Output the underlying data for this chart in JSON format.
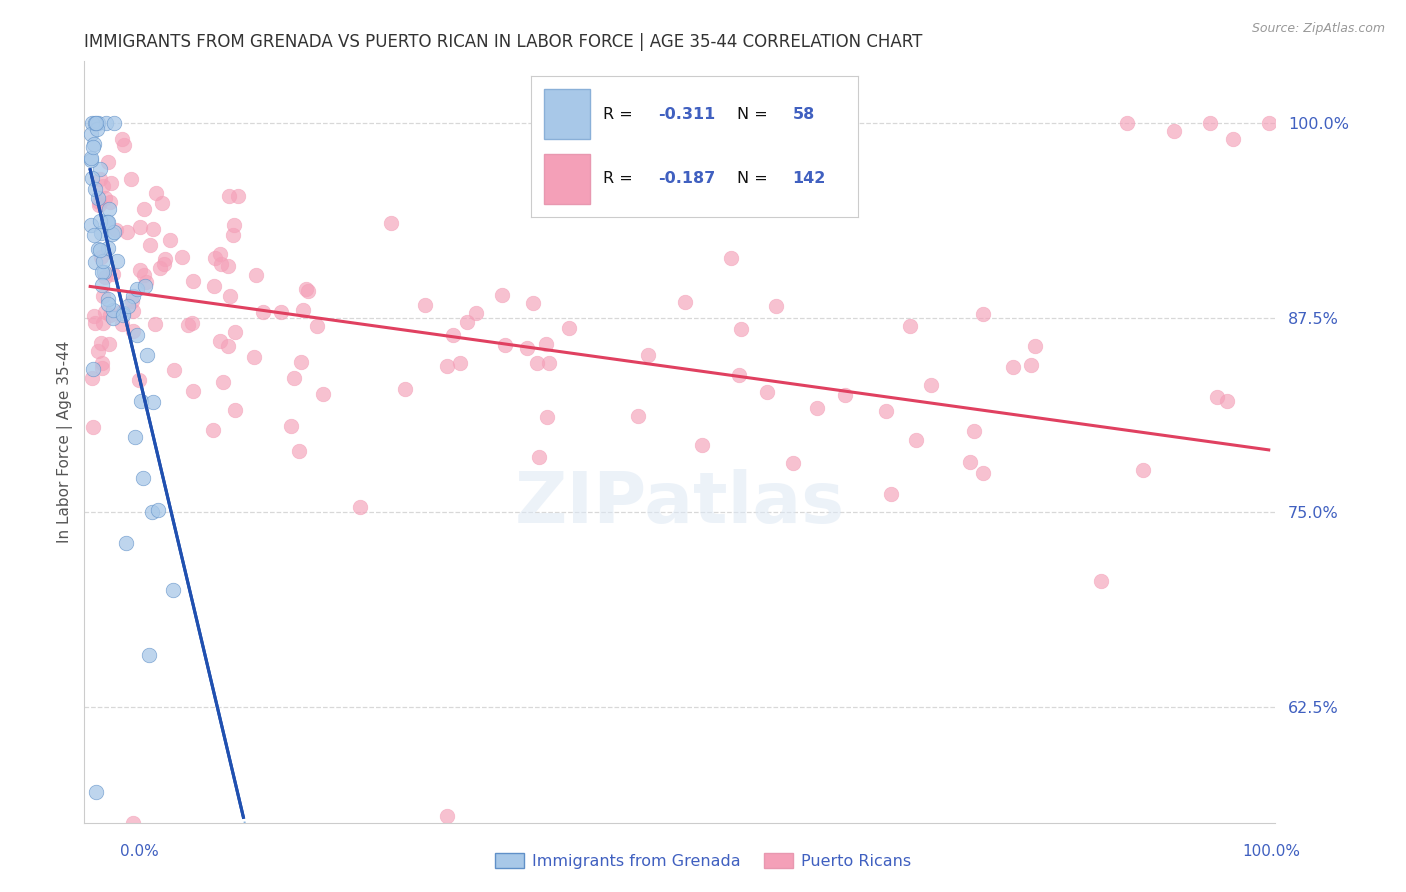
{
  "title": "IMMIGRANTS FROM GRENADA VS PUERTO RICAN IN LABOR FORCE | AGE 35-44 CORRELATION CHART",
  "source": "Source: ZipAtlas.com",
  "ylabel": "In Labor Force | Age 35-44",
  "ytick_labels": [
    "62.5%",
    "75.0%",
    "87.5%",
    "100.0%"
  ],
  "ytick_values": [
    0.625,
    0.75,
    0.875,
    1.0
  ],
  "legend_labels": [
    "Immigrants from Grenada",
    "Puerto Ricans"
  ],
  "blue_r_text": "-0.311",
  "blue_n_text": "58",
  "pink_r_text": "-0.187",
  "pink_n_text": "142",
  "blue_scatter_color": "#a8c8e8",
  "pink_scatter_color": "#f4a0b8",
  "blue_line_color": "#2050b0",
  "pink_line_color": "#e04060",
  "blue_dashed_color": "#90b8e0",
  "watermark": "ZIPatlas",
  "background_color": "#ffffff",
  "title_color": "#333333",
  "axis_label_color": "#4060c0",
  "grid_color": "#d8d8d8",
  "legend_text_dark": "#111111",
  "legend_value_color": "#4060c0"
}
